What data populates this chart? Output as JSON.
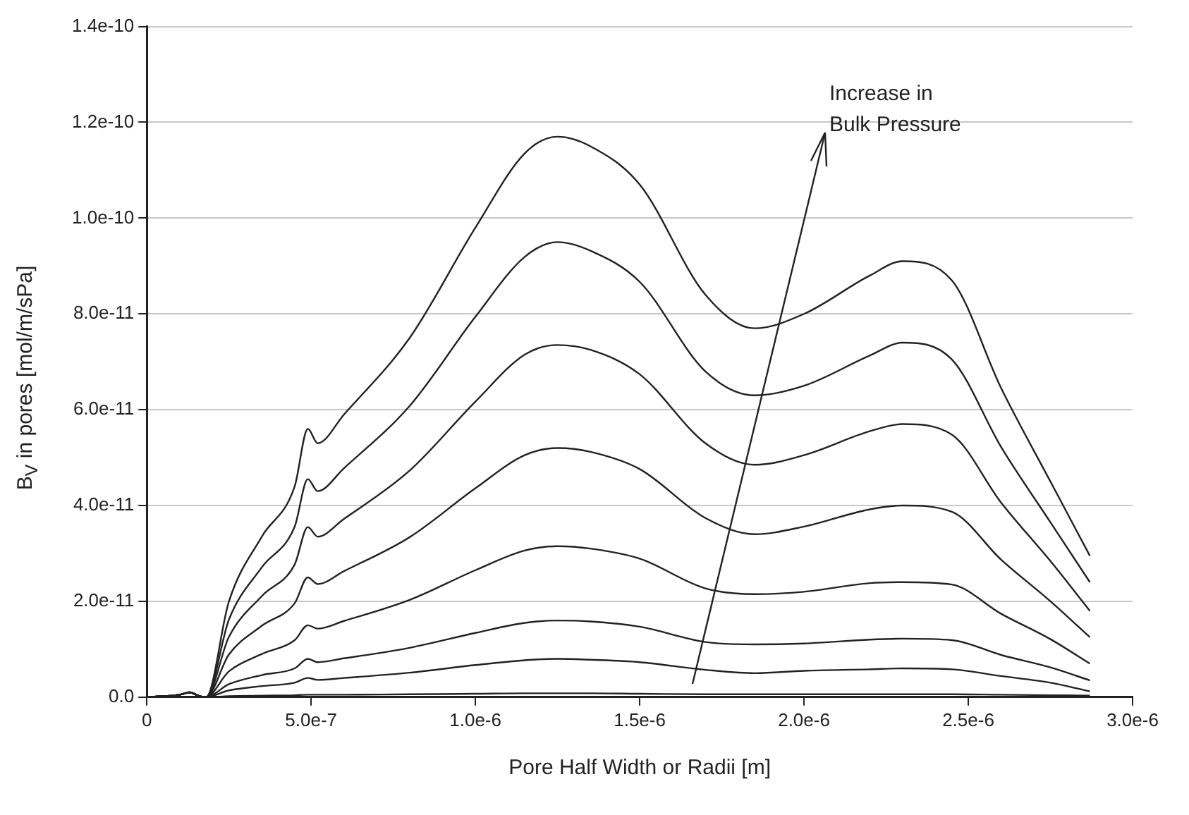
{
  "chart_data": {
    "type": "line",
    "xlabel": "Pore Half Width or Radii [m]",
    "ylabel": "B$_{V}$ in pores [mol/m/sPa]",
    "annotations": [
      "Increase in\nBulk Pressure"
    ],
    "x": [
      0,
      1e-07,
      1.3e-07,
      1.6e-07,
      1.8e-07,
      2.5e-07,
      3.5e-07,
      4.5e-07,
      4.9e-07,
      5.2e-07,
      6e-07,
      8e-07,
      1e-06,
      1.15e-06,
      1.25e-06,
      1.35e-06,
      1.5e-06,
      1.7e-06,
      1.85e-06,
      2e-06,
      2.2e-06,
      2.3e-06,
      2.45e-06,
      2.6e-06,
      2.75e-06,
      2.87e-06
    ],
    "series": [
      {
        "color": "#222222",
        "values": [
          0,
          5e-13,
          1e-12,
          2e-13,
          0,
          2e-11,
          3.35e-11,
          4.4e-11,
          5.6e-11,
          5.3e-11,
          5.9e-11,
          7.5e-11,
          9.8e-11,
          1.135e-10,
          1.17e-10,
          1.15e-10,
          1.07e-10,
          8.4e-11,
          7.7e-11,
          8e-11,
          8.8e-11,
          9.1e-11,
          8.7e-11,
          6.45e-11,
          4.5e-11,
          2.95e-11
        ]
      },
      {
        "color": "#222222",
        "values": [
          0,
          5e-13,
          1e-12,
          2e-13,
          0,
          1.62e-11,
          2.71e-11,
          3.56e-11,
          4.55e-11,
          4.3e-11,
          4.78e-11,
          6.08e-11,
          7.94e-11,
          9.19e-11,
          9.5e-11,
          9.32e-11,
          8.67e-11,
          6.8e-11,
          6.3e-11,
          6.5e-11,
          7.13e-11,
          7.4e-11,
          7.05e-11,
          5.22e-11,
          3.65e-11,
          2.4e-11
        ]
      },
      {
        "color": "#222222",
        "values": [
          0,
          5e-13,
          1e-12,
          2e-13,
          0,
          1.26e-11,
          2.11e-11,
          2.77e-11,
          3.55e-11,
          3.35e-11,
          3.72e-11,
          4.73e-11,
          6.17e-11,
          7.15e-11,
          7.35e-11,
          7.25e-11,
          6.74e-11,
          5.3e-11,
          4.85e-11,
          5.05e-11,
          5.55e-11,
          5.7e-11,
          5.48e-11,
          4.06e-11,
          2.84e-11,
          1.8e-11
        ]
      },
      {
        "color": "#222222",
        "values": [
          0,
          5e-13,
          1e-12,
          2e-13,
          0,
          8.9e-12,
          1.49e-11,
          1.96e-11,
          2.5e-11,
          2.36e-11,
          2.63e-11,
          3.34e-11,
          4.36e-11,
          5.05e-11,
          5.2e-11,
          5.12e-11,
          4.76e-11,
          3.74e-11,
          3.4e-11,
          3.56e-11,
          3.92e-11,
          4e-11,
          3.87e-11,
          2.87e-11,
          2e-11,
          1.25e-11
        ]
      },
      {
        "color": "#222222",
        "values": [
          0,
          5e-13,
          1e-12,
          2e-13,
          0,
          5.4e-12,
          9e-12,
          1.19e-11,
          1.5e-11,
          1.43e-11,
          1.59e-11,
          2.03e-11,
          2.65e-11,
          3.06e-11,
          3.15e-11,
          3.1e-11,
          2.89e-11,
          2.27e-11,
          2.15e-11,
          2.2e-11,
          2.38e-11,
          2.4e-11,
          2.35e-11,
          1.74e-11,
          1.21e-11,
          7e-12
        ]
      },
      {
        "color": "#222222",
        "values": [
          0,
          5e-13,
          1e-12,
          2e-13,
          0,
          2.7e-12,
          4.6e-12,
          6e-12,
          8e-12,
          7.3e-12,
          8.1e-12,
          1.03e-11,
          1.34e-11,
          1.55e-11,
          1.6e-11,
          1.58e-11,
          1.47e-11,
          1.15e-11,
          1.1e-11,
          1.12e-11,
          1.2e-11,
          1.22e-11,
          1.19e-11,
          8.8e-12,
          6.2e-12,
          3.5e-12
        ]
      },
      {
        "color": "#222222",
        "values": [
          0,
          5e-13,
          1e-12,
          2e-13,
          0,
          1.4e-12,
          2.3e-12,
          3e-12,
          4e-12,
          3.6e-12,
          4e-12,
          5.1e-12,
          6.7e-12,
          7.7e-12,
          8e-12,
          7.8e-12,
          7.3e-12,
          5.7e-12,
          5e-12,
          5.5e-12,
          5.8e-12,
          6e-12,
          5.8e-12,
          4.4e-12,
          3e-12,
          1.2e-12
        ]
      },
      {
        "color": "#222222",
        "values": [
          0,
          5e-13,
          1e-12,
          2e-13,
          0,
          2e-13,
          3e-13,
          4e-13,
          5e-13,
          5e-13,
          5e-13,
          6e-13,
          7e-13,
          8e-13,
          8e-13,
          8e-13,
          7e-13,
          6e-13,
          6e-13,
          6e-13,
          6e-13,
          6e-13,
          6e-13,
          5e-13,
          4e-13,
          3e-13
        ]
      }
    ],
    "xlim": [
      0,
      3e-06
    ],
    "ylim": [
      0,
      1.4e-10
    ],
    "xticks": [
      0,
      {
        "value": 5e-07,
        "label": "5.0e-7"
      },
      {
        "value": 1e-06,
        "label": "1.0e-6"
      },
      {
        "value": 1.5e-06,
        "label": "1.5e-6"
      },
      {
        "value": 2e-06,
        "label": "2.0e-6"
      },
      {
        "value": 2.5e-06,
        "label": "2.5e-6"
      },
      {
        "value": 3e-06,
        "label": "3.0e-6"
      }
    ],
    "yticks": [
      {
        "value": 0,
        "label": "0.0"
      },
      {
        "value": 2e-11,
        "label": "2.0e-11"
      },
      {
        "value": 4e-11,
        "label": "4.0e-11"
      },
      {
        "value": 6e-11,
        "label": "6.0e-11"
      },
      {
        "value": 8e-11,
        "label": "8.0e-11"
      },
      {
        "value": 1e-10,
        "label": "1.0e-10"
      },
      {
        "value": 1.2e-10,
        "label": "1.2e-10"
      },
      {
        "value": 1.4e-10,
        "label": "1.4e-10"
      }
    ],
    "grid": "y",
    "legend": false,
    "marker": "none",
    "line_style": "solid"
  }
}
